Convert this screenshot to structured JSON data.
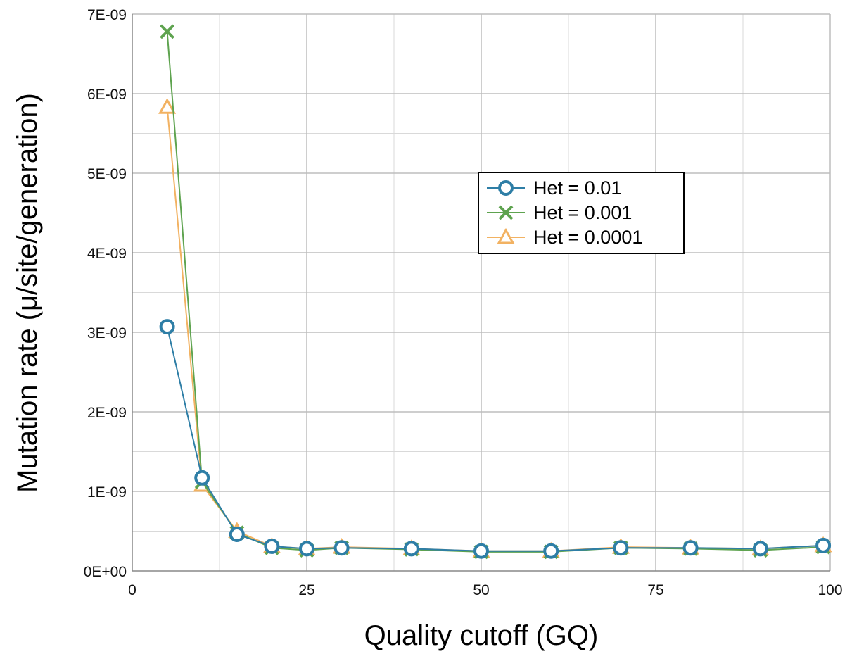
{
  "chart_data": {
    "type": "line",
    "xlabel": "Quality cutoff (GQ)",
    "ylabel": "Mutation rate (μ/site/generation)",
    "xlim": [
      0,
      100
    ],
    "ylim": [
      0,
      7e-09
    ],
    "x_ticks": [
      {
        "value": 0,
        "label": "0"
      },
      {
        "value": 25,
        "label": "25"
      },
      {
        "value": 50,
        "label": "50"
      },
      {
        "value": 75,
        "label": "75"
      },
      {
        "value": 100,
        "label": "100"
      }
    ],
    "y_ticks": [
      {
        "value": 0,
        "label": "0E+00"
      },
      {
        "value": 1e-09,
        "label": "1E-09"
      },
      {
        "value": 2e-09,
        "label": "2E-09"
      },
      {
        "value": 3e-09,
        "label": "3E-09"
      },
      {
        "value": 4e-09,
        "label": "4E-09"
      },
      {
        "value": 5e-09,
        "label": "5E-09"
      },
      {
        "value": 6e-09,
        "label": "6E-09"
      },
      {
        "value": 7e-09,
        "label": "7E-09"
      }
    ],
    "grid": true,
    "minor_grid_step_y": 5e-10,
    "legend_position": "upper-right",
    "x": [
      5,
      10,
      15,
      20,
      25,
      30,
      40,
      50,
      60,
      70,
      80,
      90,
      99
    ],
    "series": [
      {
        "name": "Het = 0.0001",
        "marker": "triangle",
        "color": "#f2b262",
        "values": [
          5.83e-09,
          1.08e-09,
          5e-10,
          3.1e-10,
          2.8e-10,
          3e-10,
          2.8e-10,
          2.5e-10,
          2.5e-10,
          3e-10,
          2.9e-10,
          2.8e-10,
          3.2e-10
        ]
      },
      {
        "name": "Het = 0.001",
        "marker": "x",
        "color": "#5ea34f",
        "values": [
          6.78e-09,
          1.12e-09,
          4.8e-10,
          2.9e-10,
          2.6e-10,
          2.9e-10,
          2.7e-10,
          2.4e-10,
          2.4e-10,
          2.9e-10,
          2.8e-10,
          2.6e-10,
          3e-10
        ]
      },
      {
        "name": "Het = 0.01",
        "marker": "circle",
        "color": "#2e7ea6",
        "values": [
          3.07e-09,
          1.17e-09,
          4.6e-10,
          3.1e-10,
          2.8e-10,
          2.9e-10,
          2.8e-10,
          2.5e-10,
          2.5e-10,
          2.9e-10,
          2.9e-10,
          2.8e-10,
          3.2e-10
        ]
      }
    ],
    "legend_order": [
      "Het = 0.01",
      "Het = 0.001",
      "Het = 0.0001"
    ]
  }
}
